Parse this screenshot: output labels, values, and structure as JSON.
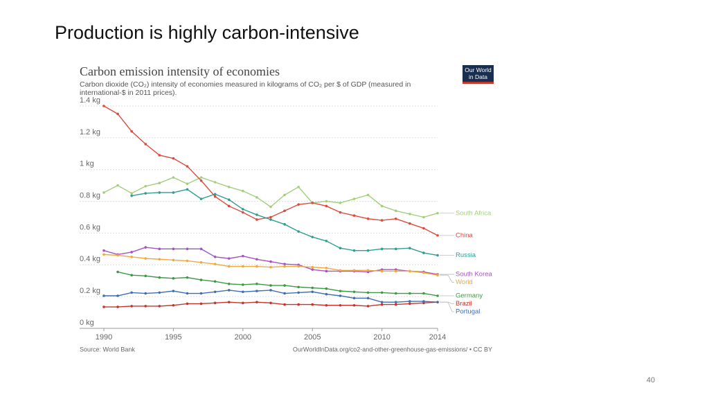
{
  "slide_title": "Production is highly carbon-intensive",
  "page_number": "40",
  "chart_data": {
    "type": "line",
    "title": "Carbon emission intensity of economies",
    "subtitle": "Carbon dioxide (CO₂) intensity of economies measured in kilograms of CO₂ per $ of GDP (measured in international-$ in 2011 prices).",
    "logo": [
      "Our World",
      "in Data"
    ],
    "source": "Source: World Bank",
    "url": "OurWorldInData.org/co2-and-other-greenhouse-gas-emissions/ • CC BY",
    "x": [
      1990,
      1991,
      1992,
      1993,
      1994,
      1995,
      1996,
      1997,
      1998,
      1999,
      2000,
      2001,
      2002,
      2003,
      2004,
      2005,
      2006,
      2007,
      2008,
      2009,
      2010,
      2011,
      2012,
      2013,
      2014
    ],
    "xlim": [
      1990,
      2014
    ],
    "xticks": [
      1990,
      1995,
      2000,
      2005,
      2010,
      2014
    ],
    "ylim": [
      0,
      1.4
    ],
    "yticks": [
      {
        "value": 0,
        "label": "0 kg"
      },
      {
        "value": 0.2,
        "label": "0.2 kg"
      },
      {
        "value": 0.4,
        "label": "0.4 kg"
      },
      {
        "value": 0.6,
        "label": "0.6 kg"
      },
      {
        "value": 0.8,
        "label": "0.8 kg"
      },
      {
        "value": 1,
        "label": "1 kg"
      },
      {
        "value": 1.2,
        "label": "1.2 kg"
      },
      {
        "value": 1.4,
        "label": "1.4 kg"
      }
    ],
    "grid": true,
    "series": [
      {
        "name": "South Africa",
        "color": "#a3cf7d",
        "values": [
          0.855,
          0.9,
          0.85,
          0.895,
          0.915,
          0.95,
          0.91,
          0.95,
          0.92,
          0.89,
          0.865,
          0.825,
          0.765,
          0.84,
          0.89,
          0.79,
          0.8,
          0.79,
          0.815,
          0.84,
          0.77,
          0.74,
          0.72,
          0.7,
          0.725
        ]
      },
      {
        "name": "China",
        "color": "#dc4a3c",
        "values": [
          1.4,
          1.35,
          1.24,
          1.16,
          1.09,
          1.07,
          1.02,
          0.93,
          0.83,
          0.77,
          0.73,
          0.685,
          0.7,
          0.74,
          0.78,
          0.79,
          0.77,
          0.73,
          0.71,
          0.69,
          0.68,
          0.69,
          0.66,
          0.63,
          0.585
        ]
      },
      {
        "name": "Russia",
        "color": "#2e9e94",
        "values": [
          null,
          null,
          0.835,
          0.85,
          0.855,
          0.855,
          0.875,
          0.815,
          0.845,
          0.81,
          0.75,
          0.715,
          0.685,
          0.655,
          0.61,
          0.575,
          0.55,
          0.505,
          0.49,
          0.49,
          0.5,
          0.5,
          0.505,
          0.475,
          0.46
        ]
      },
      {
        "name": "South Korea",
        "color": "#a552c2",
        "values": [
          0.49,
          0.465,
          0.48,
          0.51,
          0.5,
          0.5,
          0.5,
          0.5,
          0.45,
          0.44,
          0.455,
          0.435,
          0.42,
          0.405,
          0.4,
          0.37,
          0.36,
          0.36,
          0.36,
          0.355,
          0.37,
          0.37,
          0.36,
          0.355,
          0.34
        ]
      },
      {
        "name": "World",
        "color": "#f2a93b",
        "values": [
          0.465,
          0.46,
          0.45,
          0.44,
          0.435,
          0.43,
          0.425,
          0.415,
          0.405,
          0.39,
          0.39,
          0.39,
          0.385,
          0.39,
          0.39,
          0.385,
          0.38,
          0.365,
          0.365,
          0.365,
          0.36,
          0.36,
          0.36,
          0.35,
          0.335
        ]
      },
      {
        "name": "Germany",
        "color": "#3c9a42",
        "values": [
          null,
          0.355,
          0.335,
          0.33,
          0.32,
          0.315,
          0.32,
          0.305,
          0.295,
          0.28,
          0.275,
          0.28,
          0.27,
          0.27,
          0.26,
          0.255,
          0.25,
          0.235,
          0.23,
          0.225,
          0.225,
          0.22,
          0.22,
          0.22,
          0.205
        ]
      },
      {
        "name": "Brazil",
        "color": "#c7332b",
        "values": [
          0.135,
          0.135,
          0.14,
          0.14,
          0.14,
          0.145,
          0.155,
          0.155,
          0.16,
          0.165,
          0.16,
          0.165,
          0.16,
          0.15,
          0.15,
          0.15,
          0.145,
          0.145,
          0.145,
          0.14,
          0.15,
          0.15,
          0.155,
          0.16,
          0.165
        ]
      },
      {
        "name": "Portugal",
        "color": "#3e6db5",
        "values": [
          0.205,
          0.205,
          0.225,
          0.22,
          0.225,
          0.235,
          0.22,
          0.22,
          0.23,
          0.24,
          0.23,
          0.235,
          0.24,
          0.22,
          0.225,
          0.23,
          0.215,
          0.205,
          0.19,
          0.19,
          0.165,
          0.165,
          0.17,
          0.17,
          0.165
        ]
      }
    ]
  }
}
